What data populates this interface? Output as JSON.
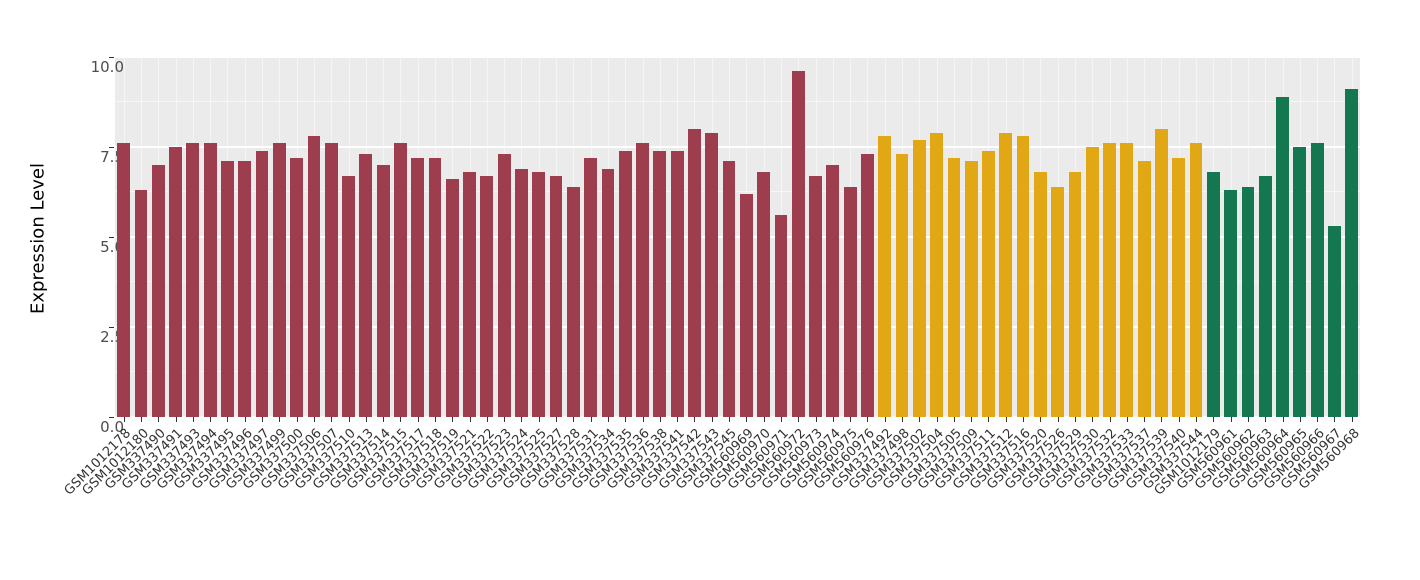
{
  "chart_data": {
    "type": "bar",
    "title": "",
    "xlabel": "",
    "ylabel": "Expression Level",
    "ylim": [
      0,
      10
    ],
    "yticks": [
      "0.0",
      "2.5",
      "5.0",
      "7.5",
      "10.0"
    ],
    "grid": true,
    "legend": false,
    "panel_background": "#EBEBEB",
    "bar_colors": {
      "group1": "#9E3D4E",
      "group2": "#E2A715",
      "group3": "#13784F"
    },
    "bars": [
      {
        "label": "GSM1012178",
        "value": 7.6,
        "group": "group1"
      },
      {
        "label": "GSM1012180",
        "value": 6.3,
        "group": "group1"
      },
      {
        "label": "GSM337490",
        "value": 7.0,
        "group": "group1"
      },
      {
        "label": "GSM337491",
        "value": 7.5,
        "group": "group1"
      },
      {
        "label": "GSM337493",
        "value": 7.6,
        "group": "group1"
      },
      {
        "label": "GSM337494",
        "value": 7.6,
        "group": "group1"
      },
      {
        "label": "GSM337495",
        "value": 7.1,
        "group": "group1"
      },
      {
        "label": "GSM337496",
        "value": 7.1,
        "group": "group1"
      },
      {
        "label": "GSM337497",
        "value": 7.4,
        "group": "group1"
      },
      {
        "label": "GSM337499",
        "value": 7.6,
        "group": "group1"
      },
      {
        "label": "GSM337500",
        "value": 7.2,
        "group": "group1"
      },
      {
        "label": "GSM337506",
        "value": 7.8,
        "group": "group1"
      },
      {
        "label": "GSM337507",
        "value": 7.6,
        "group": "group1"
      },
      {
        "label": "GSM337510",
        "value": 6.7,
        "group": "group1"
      },
      {
        "label": "GSM337513",
        "value": 7.3,
        "group": "group1"
      },
      {
        "label": "GSM337514",
        "value": 7.0,
        "group": "group1"
      },
      {
        "label": "GSM337515",
        "value": 7.6,
        "group": "group1"
      },
      {
        "label": "GSM337517",
        "value": 7.2,
        "group": "group1"
      },
      {
        "label": "GSM337518",
        "value": 7.2,
        "group": "group1"
      },
      {
        "label": "GSM337519",
        "value": 6.6,
        "group": "group1"
      },
      {
        "label": "GSM337521",
        "value": 6.8,
        "group": "group1"
      },
      {
        "label": "GSM337522",
        "value": 6.7,
        "group": "group1"
      },
      {
        "label": "GSM337523",
        "value": 7.3,
        "group": "group1"
      },
      {
        "label": "GSM337524",
        "value": 6.9,
        "group": "group1"
      },
      {
        "label": "GSM337525",
        "value": 6.8,
        "group": "group1"
      },
      {
        "label": "GSM337527",
        "value": 6.7,
        "group": "group1"
      },
      {
        "label": "GSM337528",
        "value": 6.4,
        "group": "group1"
      },
      {
        "label": "GSM337531",
        "value": 7.2,
        "group": "group1"
      },
      {
        "label": "GSM337534",
        "value": 6.9,
        "group": "group1"
      },
      {
        "label": "GSM337535",
        "value": 7.4,
        "group": "group1"
      },
      {
        "label": "GSM337536",
        "value": 7.6,
        "group": "group1"
      },
      {
        "label": "GSM337538",
        "value": 7.4,
        "group": "group1"
      },
      {
        "label": "GSM337541",
        "value": 7.4,
        "group": "group1"
      },
      {
        "label": "GSM337542",
        "value": 8.0,
        "group": "group1"
      },
      {
        "label": "GSM337543",
        "value": 7.9,
        "group": "group1"
      },
      {
        "label": "GSM337545",
        "value": 7.1,
        "group": "group1"
      },
      {
        "label": "GSM560969",
        "value": 6.2,
        "group": "group1"
      },
      {
        "label": "GSM560970",
        "value": 6.8,
        "group": "group1"
      },
      {
        "label": "GSM560971",
        "value": 5.6,
        "group": "group1"
      },
      {
        "label": "GSM560972",
        "value": 9.6,
        "group": "group1"
      },
      {
        "label": "GSM560973",
        "value": 6.7,
        "group": "group1"
      },
      {
        "label": "GSM560974",
        "value": 7.0,
        "group": "group1"
      },
      {
        "label": "GSM560975",
        "value": 6.4,
        "group": "group1"
      },
      {
        "label": "GSM560976",
        "value": 7.3,
        "group": "group1"
      },
      {
        "label": "GSM337492",
        "value": 7.8,
        "group": "group2"
      },
      {
        "label": "GSM337498",
        "value": 7.3,
        "group": "group2"
      },
      {
        "label": "GSM337502",
        "value": 7.7,
        "group": "group2"
      },
      {
        "label": "GSM337504",
        "value": 7.9,
        "group": "group2"
      },
      {
        "label": "GSM337505",
        "value": 7.2,
        "group": "group2"
      },
      {
        "label": "GSM337509",
        "value": 7.1,
        "group": "group2"
      },
      {
        "label": "GSM337511",
        "value": 7.4,
        "group": "group2"
      },
      {
        "label": "GSM337512",
        "value": 7.9,
        "group": "group2"
      },
      {
        "label": "GSM337516",
        "value": 7.8,
        "group": "group2"
      },
      {
        "label": "GSM337520",
        "value": 6.8,
        "group": "group2"
      },
      {
        "label": "GSM337526",
        "value": 6.4,
        "group": "group2"
      },
      {
        "label": "GSM337529",
        "value": 6.8,
        "group": "group2"
      },
      {
        "label": "GSM337530",
        "value": 7.5,
        "group": "group2"
      },
      {
        "label": "GSM337532",
        "value": 7.6,
        "group": "group2"
      },
      {
        "label": "GSM337533",
        "value": 7.6,
        "group": "group2"
      },
      {
        "label": "GSM337537",
        "value": 7.1,
        "group": "group2"
      },
      {
        "label": "GSM337539",
        "value": 8.0,
        "group": "group2"
      },
      {
        "label": "GSM337540",
        "value": 7.2,
        "group": "group2"
      },
      {
        "label": "GSM337544",
        "value": 7.6,
        "group": "group2"
      },
      {
        "label": "GSM1012179",
        "value": 6.8,
        "group": "group3"
      },
      {
        "label": "GSM560961",
        "value": 6.3,
        "group": "group3"
      },
      {
        "label": "GSM560962",
        "value": 6.4,
        "group": "group3"
      },
      {
        "label": "GSM560963",
        "value": 6.7,
        "group": "group3"
      },
      {
        "label": "GSM560964",
        "value": 8.9,
        "group": "group3"
      },
      {
        "label": "GSM560965",
        "value": 7.5,
        "group": "group3"
      },
      {
        "label": "GSM560966",
        "value": 7.6,
        "group": "group3"
      },
      {
        "label": "GSM560967",
        "value": 5.3,
        "group": "group3"
      },
      {
        "label": "GSM560968",
        "value": 9.1,
        "group": "group3"
      }
    ]
  }
}
